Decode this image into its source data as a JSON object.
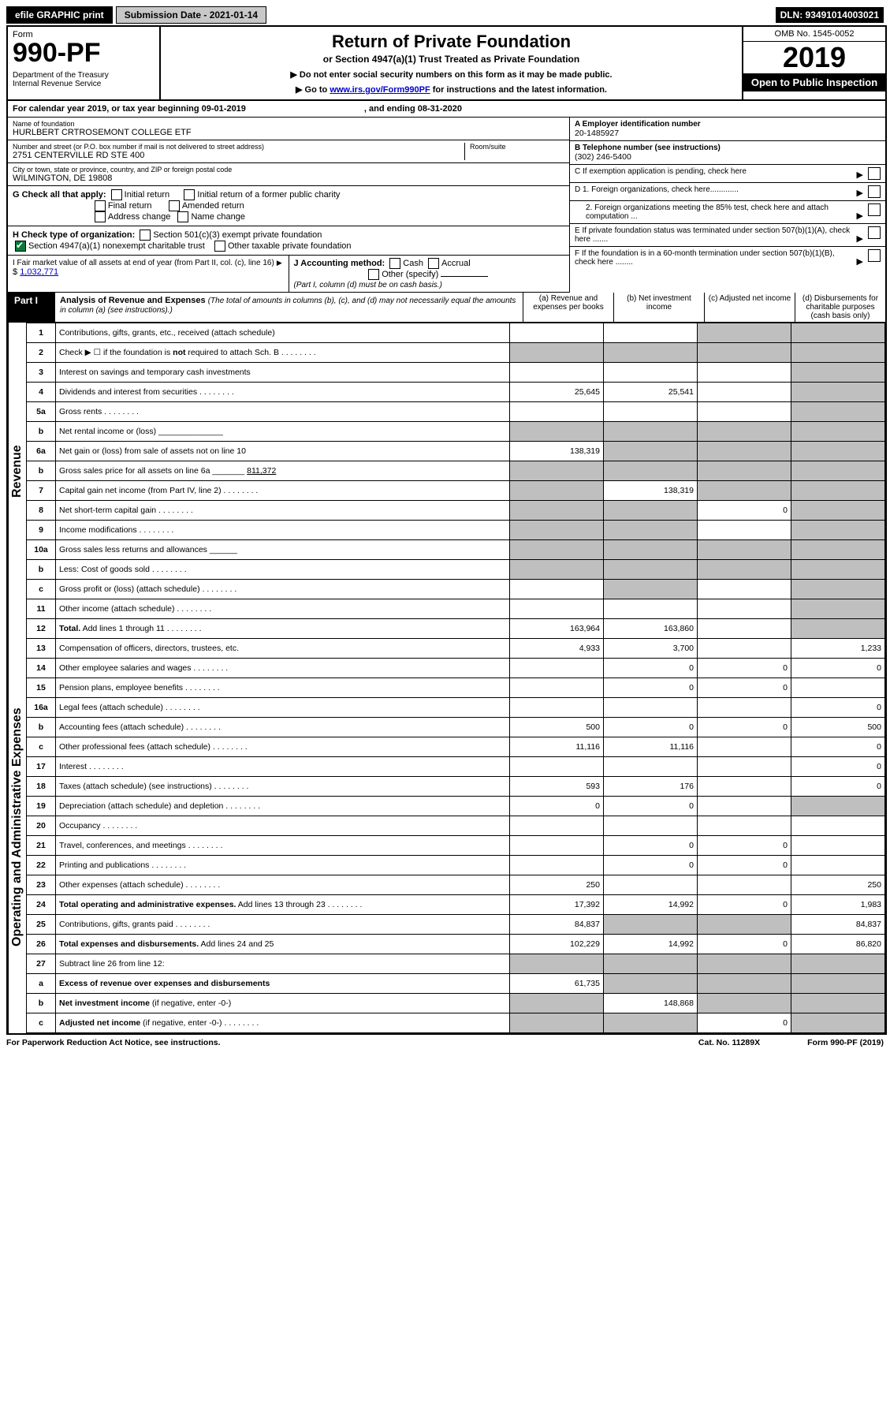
{
  "topbar": {
    "efile": "efile GRAPHIC print",
    "submission": "Submission Date - 2021-01-14",
    "dln": "DLN: 93491014003021"
  },
  "header": {
    "form_label": "Form",
    "form_no": "990-PF",
    "dept": "Department of the Treasury\nInternal Revenue Service",
    "title": "Return of Private Foundation",
    "subtitle": "or Section 4947(a)(1) Trust Treated as Private Foundation",
    "note1": "▶ Do not enter social security numbers on this form as it may be made public.",
    "note2_pre": "▶ Go to ",
    "note2_link": "www.irs.gov/Form990PF",
    "note2_post": " for instructions and the latest information.",
    "omb": "OMB No. 1545-0052",
    "year": "2019",
    "open": "Open to Public Inspection"
  },
  "cal": {
    "text": "For calendar year 2019, or tax year beginning 09-01-2019",
    "end": ", and ending 08-31-2020"
  },
  "id": {
    "name_lbl": "Name of foundation",
    "name": "HURLBERT CRTROSEMONT COLLEGE ETF",
    "addr_lbl": "Number and street (or P.O. box number if mail is not delivered to street address)",
    "addr": "2751 CENTERVILLE RD STE 400",
    "room_lbl": "Room/suite",
    "city_lbl": "City or town, state or province, country, and ZIP or foreign postal code",
    "city": "WILMINGTON, DE  19808",
    "a_lbl": "A Employer identification number",
    "a_val": "20-1485927",
    "b_lbl": "B Telephone number (see instructions)",
    "b_val": "(302) 246-5400",
    "c_lbl": "C If exemption application is pending, check here",
    "d1": "D 1. Foreign organizations, check here.............",
    "d2": "2. Foreign organizations meeting the 85% test, check here and attach computation ...",
    "e": "E  If private foundation status was terminated under section 507(b)(1)(A), check here .......",
    "f": "F  If the foundation is in a 60-month termination under section 507(b)(1)(B), check here ........"
  },
  "g": {
    "label": "G Check all that apply:",
    "opts": [
      "Initial return",
      "Final return",
      "Address change",
      "Initial return of a former public charity",
      "Amended return",
      "Name change"
    ]
  },
  "h": {
    "label": "H Check type of organization:",
    "o1": "Section 501(c)(3) exempt private foundation",
    "o2": "Section 4947(a)(1) nonexempt charitable trust",
    "o3": "Other taxable private foundation"
  },
  "i": {
    "label": "I Fair market value of all assets at end of year (from Part II, col. (c), line 16)",
    "val": "1,032,771"
  },
  "j": {
    "label": "J Accounting method:",
    "cash": "Cash",
    "accrual": "Accrual",
    "other": "Other (specify)",
    "note": "(Part I, column (d) must be on cash basis.)"
  },
  "part1": {
    "label": "Part I",
    "title": "Analysis of Revenue and Expenses",
    "note": "(The total of amounts in columns (b), (c), and (d) may not necessarily equal the amounts in column (a) (see instructions).)",
    "cols": {
      "a": "(a)  Revenue and expenses per books",
      "b": "(b)  Net investment income",
      "c": "(c)  Adjusted net income",
      "d": "(d)  Disbursements for charitable purposes (cash basis only)"
    }
  },
  "sections": {
    "revenue": "Revenue",
    "expenses": "Operating and Administrative Expenses"
  },
  "rows": [
    {
      "n": "1",
      "d": "Contributions, gifts, grants, etc., received (attach schedule)",
      "a": "",
      "b": "",
      "c": "g",
      "dcol": "g"
    },
    {
      "n": "2",
      "d": "Check ▶ ☐ if the foundation is <b>not</b> required to attach Sch. B",
      "dots": true,
      "a": "g",
      "b": "g",
      "c": "g",
      "dcol": "g"
    },
    {
      "n": "3",
      "d": "Interest on savings and temporary cash investments",
      "a": "",
      "b": "",
      "c": "",
      "dcol": "g"
    },
    {
      "n": "4",
      "d": "Dividends and interest from securities",
      "dots": true,
      "a": "25,645",
      "b": "25,541",
      "c": "",
      "dcol": "g"
    },
    {
      "n": "5a",
      "d": "Gross rents",
      "dots": true,
      "a": "",
      "b": "",
      "c": "",
      "dcol": "g"
    },
    {
      "n": "b",
      "d": "Net rental income or (loss) ______________",
      "a": "g",
      "b": "g",
      "c": "g",
      "dcol": "g"
    },
    {
      "n": "6a",
      "d": "Net gain or (loss) from sale of assets not on line 10",
      "a": "138,319",
      "b": "g",
      "c": "g",
      "dcol": "g"
    },
    {
      "n": "b",
      "d": "Gross sales price for all assets on line 6a _______ <u>811,372</u>",
      "a": "g",
      "b": "g",
      "c": "g",
      "dcol": "g"
    },
    {
      "n": "7",
      "d": "Capital gain net income (from Part IV, line 2)",
      "dots": true,
      "a": "g",
      "b": "138,319",
      "c": "g",
      "dcol": "g"
    },
    {
      "n": "8",
      "d": "Net short-term capital gain",
      "dots": true,
      "a": "g",
      "b": "g",
      "c": "0",
      "dcol": "g"
    },
    {
      "n": "9",
      "d": "Income modifications",
      "dots": true,
      "a": "g",
      "b": "g",
      "c": "",
      "dcol": "g"
    },
    {
      "n": "10a",
      "d": "Gross sales less returns and allowances ______",
      "a": "g",
      "b": "g",
      "c": "g",
      "dcol": "g"
    },
    {
      "n": "b",
      "d": "Less: Cost of goods sold",
      "dots": true,
      "a": "g",
      "b": "g",
      "c": "g",
      "dcol": "g"
    },
    {
      "n": "c",
      "d": "Gross profit or (loss) (attach schedule)",
      "dots": true,
      "a": "",
      "b": "g",
      "c": "",
      "dcol": "g"
    },
    {
      "n": "11",
      "d": "Other income (attach schedule)",
      "dots": true,
      "a": "",
      "b": "",
      "c": "",
      "dcol": "g"
    },
    {
      "n": "12",
      "d": "<b>Total.</b> Add lines 1 through 11",
      "dots": true,
      "a": "163,964",
      "b": "163,860",
      "c": "",
      "dcol": "g"
    },
    {
      "n": "13",
      "d": "Compensation of officers, directors, trustees, etc.",
      "a": "4,933",
      "b": "3,700",
      "c": "",
      "dcol": "1,233"
    },
    {
      "n": "14",
      "d": "Other employee salaries and wages",
      "dots": true,
      "a": "",
      "b": "0",
      "c": "0",
      "dcol": "0"
    },
    {
      "n": "15",
      "d": "Pension plans, employee benefits",
      "dots": true,
      "a": "",
      "b": "0",
      "c": "0",
      "dcol": ""
    },
    {
      "n": "16a",
      "d": "Legal fees (attach schedule)",
      "dots": true,
      "a": "",
      "b": "",
      "c": "",
      "dcol": "0"
    },
    {
      "n": "b",
      "d": "Accounting fees (attach schedule)",
      "dots": true,
      "a": "500",
      "b": "0",
      "c": "0",
      "dcol": "500"
    },
    {
      "n": "c",
      "d": "Other professional fees (attach schedule)",
      "dots": true,
      "a": "11,116",
      "b": "11,116",
      "c": "",
      "dcol": "0"
    },
    {
      "n": "17",
      "d": "Interest",
      "dots": true,
      "a": "",
      "b": "",
      "c": "",
      "dcol": "0"
    },
    {
      "n": "18",
      "d": "Taxes (attach schedule) (see instructions)",
      "dots": true,
      "a": "593",
      "b": "176",
      "c": "",
      "dcol": "0"
    },
    {
      "n": "19",
      "d": "Depreciation (attach schedule) and depletion",
      "dots": true,
      "a": "0",
      "b": "0",
      "c": "",
      "dcol": "g"
    },
    {
      "n": "20",
      "d": "Occupancy",
      "dots": true,
      "a": "",
      "b": "",
      "c": "",
      "dcol": ""
    },
    {
      "n": "21",
      "d": "Travel, conferences, and meetings",
      "dots": true,
      "a": "",
      "b": "0",
      "c": "0",
      "dcol": ""
    },
    {
      "n": "22",
      "d": "Printing and publications",
      "dots": true,
      "a": "",
      "b": "0",
      "c": "0",
      "dcol": ""
    },
    {
      "n": "23",
      "d": "Other expenses (attach schedule)",
      "dots": true,
      "a": "250",
      "b": "",
      "c": "",
      "dcol": "250"
    },
    {
      "n": "24",
      "d": "<b>Total operating and administrative expenses.</b> Add lines 13 through 23",
      "dots": true,
      "a": "17,392",
      "b": "14,992",
      "c": "0",
      "dcol": "1,983"
    },
    {
      "n": "25",
      "d": "Contributions, gifts, grants paid",
      "dots": true,
      "a": "84,837",
      "b": "g",
      "c": "g",
      "dcol": "84,837"
    },
    {
      "n": "26",
      "d": "<b>Total expenses and disbursements.</b> Add lines 24 and 25",
      "a": "102,229",
      "b": "14,992",
      "c": "0",
      "dcol": "86,820"
    },
    {
      "n": "27",
      "d": "Subtract line 26 from line 12:",
      "a": "g",
      "b": "g",
      "c": "g",
      "dcol": "g"
    },
    {
      "n": "a",
      "d": "<b>Excess of revenue over expenses and disbursements</b>",
      "a": "61,735",
      "b": "g",
      "c": "g",
      "dcol": "g"
    },
    {
      "n": "b",
      "d": "<b>Net investment income</b> (if negative, enter -0-)",
      "a": "g",
      "b": "148,868",
      "c": "g",
      "dcol": "g"
    },
    {
      "n": "c",
      "d": "<b>Adjusted net income</b> (if negative, enter -0-)",
      "dots": true,
      "a": "g",
      "b": "g",
      "c": "0",
      "dcol": "g"
    }
  ],
  "footer": {
    "left": "For Paperwork Reduction Act Notice, see instructions.",
    "mid": "Cat. No. 11289X",
    "right": "Form 990-PF (2019)"
  }
}
